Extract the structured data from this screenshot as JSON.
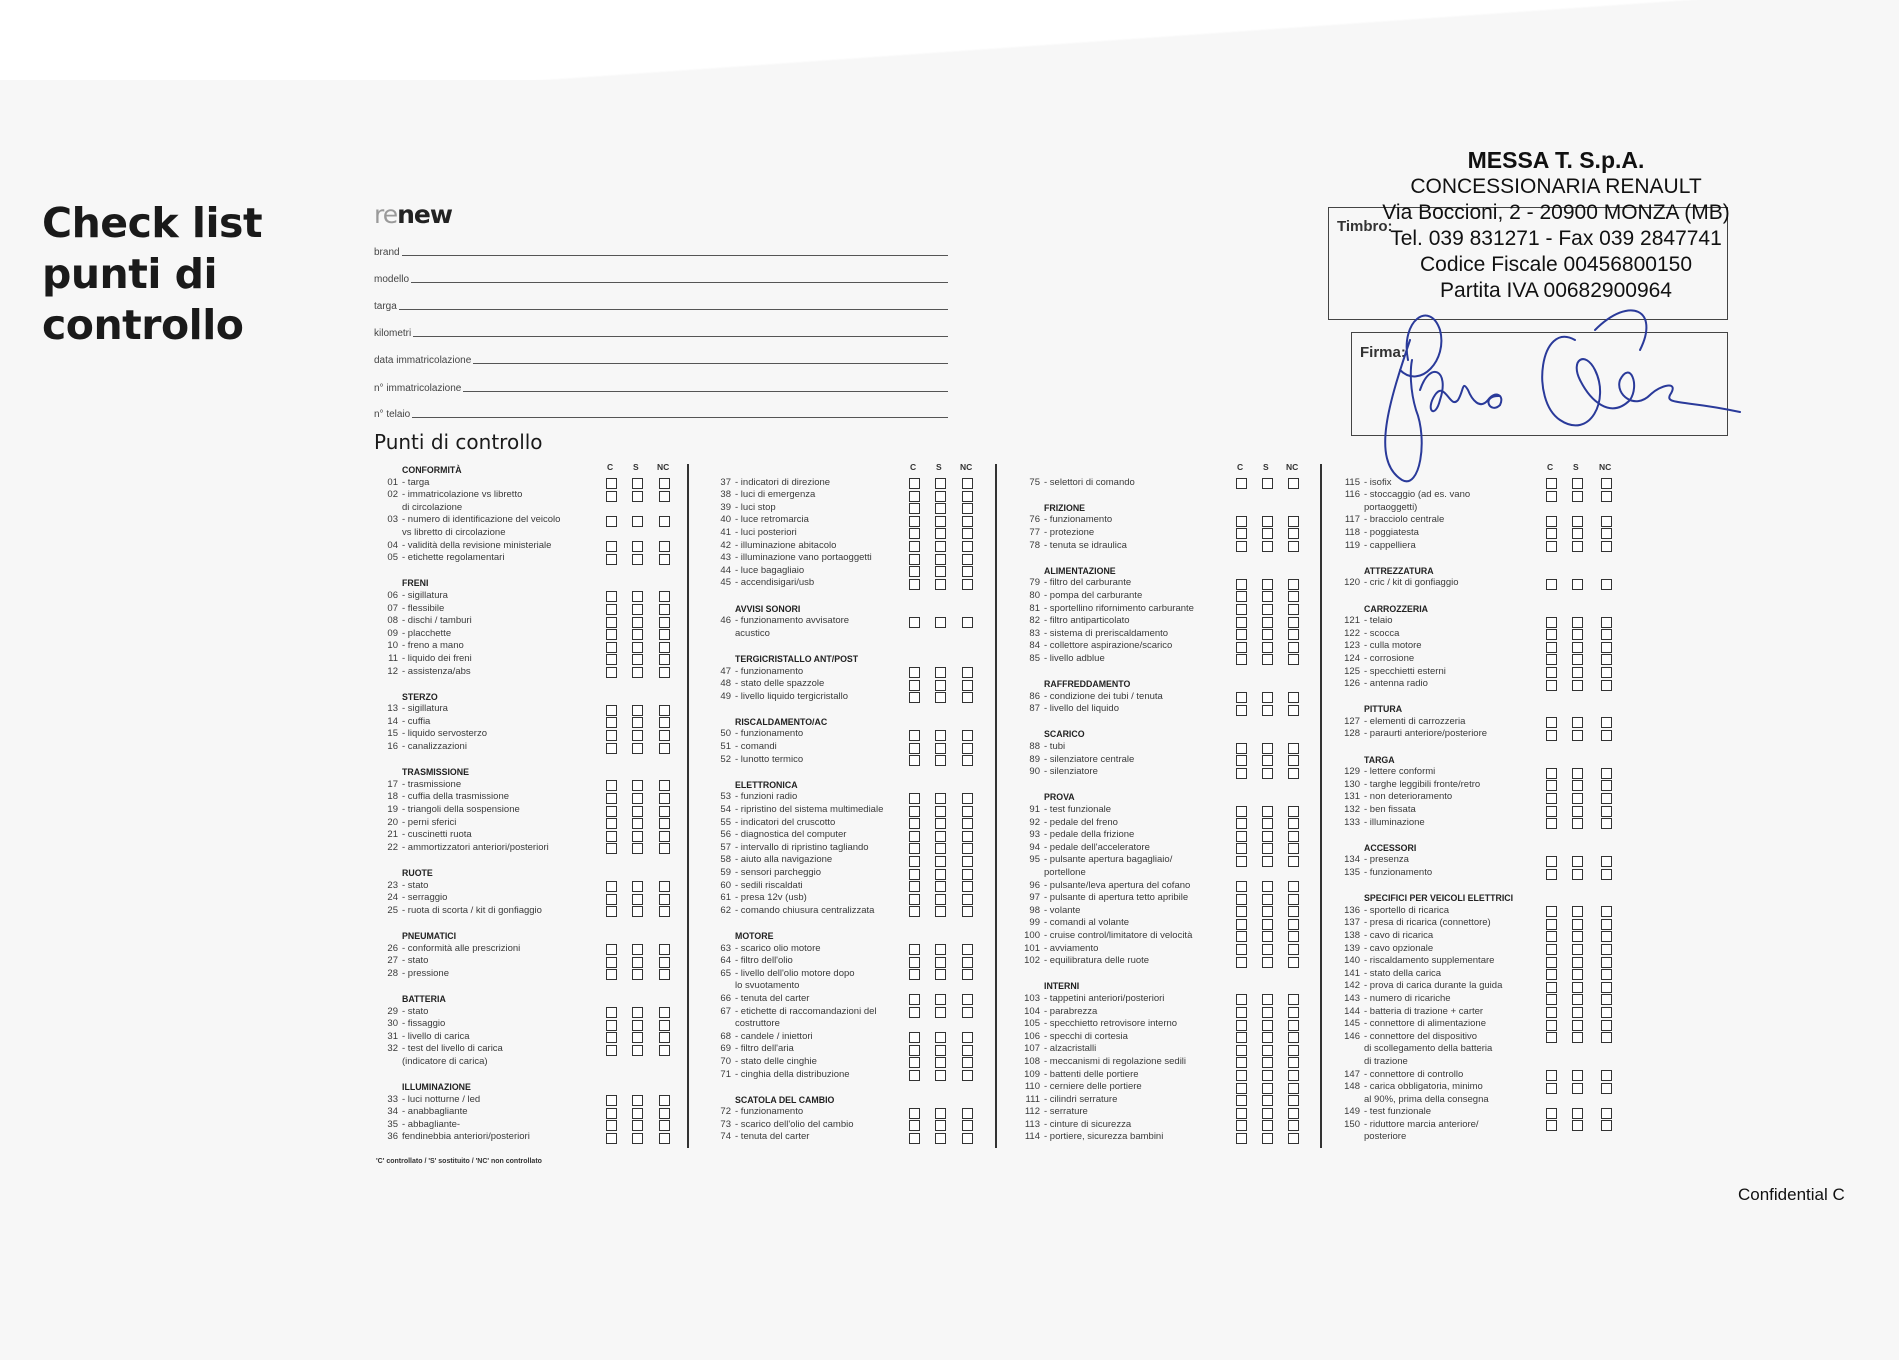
{
  "title": [
    "Check list",
    "punti di",
    "controllo"
  ],
  "logo": {
    "prefix": "re",
    "suffix": "new"
  },
  "fields": [
    "brand",
    "modello",
    "targa",
    "kilometri",
    "data immatricolazione",
    "n° immatricolazione",
    "n° telaio"
  ],
  "section_title": "Punti di controllo",
  "column_headers": [
    "C",
    "S",
    "NC"
  ],
  "columns": [
    [
      {
        "h": "CONFORMITÀ"
      },
      {
        "n": "01",
        "t": "- targa"
      },
      {
        "n": "02",
        "t": "- immatricolazione vs libretto",
        "w": [
          "di circolazione"
        ]
      },
      {
        "n": "03",
        "t": "- numero di identificazione del veicolo",
        "w": [
          "vs libretto di circolazione"
        ]
      },
      {
        "n": "04",
        "t": "- validità della revisione ministeriale"
      },
      {
        "n": "05",
        "t": "- etichette regolamentari"
      },
      {
        "h": "FRENI"
      },
      {
        "n": "06",
        "t": "- sigillatura"
      },
      {
        "n": "07",
        "t": "- flessibile"
      },
      {
        "n": "08",
        "t": "- dischi / tamburi"
      },
      {
        "n": "09",
        "t": "- placchette"
      },
      {
        "n": "10",
        "t": "- freno a mano"
      },
      {
        "n": "11",
        "t": "- liquido dei freni"
      },
      {
        "n": "12",
        "t": "- assistenza/abs"
      },
      {
        "h": "STERZO"
      },
      {
        "n": "13",
        "t": "- sigillatura"
      },
      {
        "n": "14",
        "t": "- cuffia"
      },
      {
        "n": "15",
        "t": "- liquido servosterzo"
      },
      {
        "n": "16",
        "t": "- canalizzazioni"
      },
      {
        "h": "TRASMISSIONE"
      },
      {
        "n": "17",
        "t": "- trasmissione"
      },
      {
        "n": "18",
        "t": "- cuffia della trasmissione"
      },
      {
        "n": "19",
        "t": "- triangoli della sospensione"
      },
      {
        "n": "20",
        "t": "- perni sferici"
      },
      {
        "n": "21",
        "t": "- cuscinetti ruota"
      },
      {
        "n": "22",
        "t": "- ammortizzatori anteriori/posteriori"
      },
      {
        "h": "RUOTE"
      },
      {
        "n": "23",
        "t": "- stato"
      },
      {
        "n": "24",
        "t": "- serraggio"
      },
      {
        "n": "25",
        "t": "- ruota di scorta / kit di gonfiaggio"
      },
      {
        "h": "PNEUMATICI"
      },
      {
        "n": "26",
        "t": "- conformità alle prescrizioni"
      },
      {
        "n": "27",
        "t": "- stato"
      },
      {
        "n": "28",
        "t": "- pressione"
      },
      {
        "h": "BATTERIA"
      },
      {
        "n": "29",
        "t": "- stato"
      },
      {
        "n": "30",
        "t": "- fissaggio"
      },
      {
        "n": "31",
        "t": "- livello di carica"
      },
      {
        "n": "32",
        "t": "- test del livello di carica",
        "w": [
          "(indicatore di carica)"
        ]
      },
      {
        "h": "ILLUMINAZIONE"
      },
      {
        "n": "33",
        "t": "- luci notturne / led"
      },
      {
        "n": "34",
        "t": "- anabbagliante"
      },
      {
        "n": "35",
        "t": "- abbagliante-"
      },
      {
        "n": "36",
        "t": "fendinebbia anteriori/posteriori"
      }
    ],
    [
      {
        "n": "37",
        "t": "- indicatori di direzione"
      },
      {
        "n": "38",
        "t": "- luci di emergenza"
      },
      {
        "n": "39",
        "t": "- luci stop"
      },
      {
        "n": "40",
        "t": "- luce retromarcia"
      },
      {
        "n": "41",
        "t": "- luci posteriori"
      },
      {
        "n": "42",
        "t": "- illuminazione abitacolo"
      },
      {
        "n": "43",
        "t": "- illuminazione vano portaoggetti"
      },
      {
        "n": "44",
        "t": "- luce bagagliaio"
      },
      {
        "n": "45",
        "t": "- accendisigari/usb"
      },
      {
        "h": "AVVISI SONORI"
      },
      {
        "n": "46",
        "t": "- funzionamento avvisatore",
        "w": [
          "acustico"
        ]
      },
      {
        "h": "TERGICRISTALLO ANT/POST"
      },
      {
        "n": "47",
        "t": "- funzionamento"
      },
      {
        "n": "48",
        "t": "- stato delle spazzole"
      },
      {
        "n": "49",
        "t": "- livello liquido tergicristallo"
      },
      {
        "h": "RISCALDAMENTO/AC"
      },
      {
        "n": "50",
        "t": "- funzionamento"
      },
      {
        "n": "51",
        "t": "- comandi"
      },
      {
        "n": "52",
        "t": "- lunotto termico"
      },
      {
        "h": "ELETTRONICA"
      },
      {
        "n": "53",
        "t": "- funzioni radio"
      },
      {
        "n": "54",
        "t": "- ripristino del sistema multimediale"
      },
      {
        "n": "55",
        "t": "- indicatori del cruscotto"
      },
      {
        "n": "56",
        "t": "- diagnostica del computer"
      },
      {
        "n": "57",
        "t": "- intervallo di ripristino tagliando"
      },
      {
        "n": "58",
        "t": "- aiuto alla navigazione"
      },
      {
        "n": "59",
        "t": "- sensori parcheggio"
      },
      {
        "n": "60",
        "t": "- sedili riscaldati"
      },
      {
        "n": "61",
        "t": "- presa 12v (usb)"
      },
      {
        "n": "62",
        "t": "- comando chiusura centralizzata"
      },
      {
        "h": "MOTORE"
      },
      {
        "n": "63",
        "t": "- scarico olio motore"
      },
      {
        "n": "64",
        "t": "- filtro dell'olio"
      },
      {
        "n": "65",
        "t": "- livello dell'olio motore dopo",
        "w": [
          "lo svuotamento"
        ]
      },
      {
        "n": "66",
        "t": "- tenuta del carter"
      },
      {
        "n": "67",
        "t": "- etichette di raccomandazioni del",
        "w": [
          "costruttore"
        ]
      },
      {
        "n": "68",
        "t": "- candele / iniettori"
      },
      {
        "n": "69",
        "t": "- filtro dell'aria"
      },
      {
        "n": "70",
        "t": "- stato delle cinghie"
      },
      {
        "n": "71",
        "t": "- cinghia della distribuzione"
      },
      {
        "h": "SCATOLA DEL CAMBIO"
      },
      {
        "n": "72",
        "t": "- funzionamento"
      },
      {
        "n": "73",
        "t": "- scarico dell'olio del cambio"
      },
      {
        "n": "74",
        "t": "- tenuta del carter"
      }
    ],
    [
      {
        "n": "75",
        "t": "- selettori di comando"
      },
      {
        "h": "FRIZIONE"
      },
      {
        "n": "76",
        "t": "- funzionamento"
      },
      {
        "n": "77",
        "t": "- protezione"
      },
      {
        "n": "78",
        "t": "- tenuta se idraulica"
      },
      {
        "h": "ALIMENTAZIONE"
      },
      {
        "n": "79",
        "t": "- filtro del carburante"
      },
      {
        "n": "80",
        "t": "- pompa del carburante"
      },
      {
        "n": "81",
        "t": "- sportellino rifornimento carburante"
      },
      {
        "n": "82",
        "t": "- filtro antiparticolato"
      },
      {
        "n": "83",
        "t": "- sistema di preriscaldamento"
      },
      {
        "n": "84",
        "t": "- collettore aspirazione/scarico"
      },
      {
        "n": "85",
        "t": "- livello adblue"
      },
      {
        "h": "RAFFREDDAMENTO"
      },
      {
        "n": "86",
        "t": "- condizione dei tubi / tenuta"
      },
      {
        "n": "87",
        "t": "- livello del liquido"
      },
      {
        "h": "SCARICO"
      },
      {
        "n": "88",
        "t": "- tubi"
      },
      {
        "n": "89",
        "t": "- silenziatore centrale"
      },
      {
        "n": "90",
        "t": "- silenziatore"
      },
      {
        "h": "PROVA"
      },
      {
        "n": "91",
        "t": "- test funzionale"
      },
      {
        "n": "92",
        "t": "- pedale del freno"
      },
      {
        "n": "93",
        "t": "- pedale della frizione"
      },
      {
        "n": "94",
        "t": "- pedale dell'acceleratore"
      },
      {
        "n": "95",
        "t": "- pulsante apertura bagagliaio/",
        "w": [
          "portellone"
        ]
      },
      {
        "n": "96",
        "t": "- pulsante/leva apertura del cofano"
      },
      {
        "n": "97",
        "t": "- pulsante di apertura tetto apribile"
      },
      {
        "n": "98",
        "t": "- volante"
      },
      {
        "n": "99",
        "t": "- comandi al volante"
      },
      {
        "n": "100",
        "t": "- cruise control/limitatore di velocità"
      },
      {
        "n": "101",
        "t": "- avviamento"
      },
      {
        "n": "102",
        "t": "- equilibratura delle ruote"
      },
      {
        "h": "INTERNI"
      },
      {
        "n": "103",
        "t": "- tappetini anteriori/posteriori"
      },
      {
        "n": "104",
        "t": "- parabrezza"
      },
      {
        "n": "105",
        "t": "- specchietto retrovisore interno"
      },
      {
        "n": "106",
        "t": "- specchi di cortesia"
      },
      {
        "n": "107",
        "t": "- alzacristalli"
      },
      {
        "n": "108",
        "t": "- meccanismi di regolazione sedili"
      },
      {
        "n": "109",
        "t": "- battenti delle portiere"
      },
      {
        "n": "110",
        "t": "- cerniere delle portiere"
      },
      {
        "n": "111",
        "t": "- cilindri serrature"
      },
      {
        "n": "112",
        "t": "- serrature"
      },
      {
        "n": "113",
        "t": "- cinture di sicurezza"
      },
      {
        "n": "114",
        "t": "- portiere, sicurezza bambini"
      }
    ],
    [
      {
        "n": "115",
        "t": "- isofix"
      },
      {
        "n": "116",
        "t": "- stoccaggio (ad es. vano",
        "w": [
          "portaoggetti)"
        ]
      },
      {
        "n": "117",
        "t": "- bracciolo centrale"
      },
      {
        "n": "118",
        "t": "- poggiatesta"
      },
      {
        "n": "119",
        "t": "- cappelliera"
      },
      {
        "h": "ATTREZZATURA"
      },
      {
        "n": "120",
        "t": "- cric / kit di gonfiaggio"
      },
      {
        "h": "CARROZZERIA"
      },
      {
        "n": "121",
        "t": "- telaio"
      },
      {
        "n": "122",
        "t": "- scocca"
      },
      {
        "n": "123",
        "t": "- culla motore"
      },
      {
        "n": "124",
        "t": "- corrosione"
      },
      {
        "n": "125",
        "t": "- specchietti esterni"
      },
      {
        "n": "126",
        "t": "- antenna radio"
      },
      {
        "h": "PITTURA"
      },
      {
        "n": "127",
        "t": "- elementi di carrozzeria"
      },
      {
        "n": "128",
        "t": "- paraurti anteriore/posteriore"
      },
      {
        "h": "TARGA"
      },
      {
        "n": "129",
        "t": "- lettere conformi"
      },
      {
        "n": "130",
        "t": "- targhe leggibili fronte/retro"
      },
      {
        "n": "131",
        "t": "- non deterioramento"
      },
      {
        "n": "132",
        "t": "- ben fissata"
      },
      {
        "n": "133",
        "t": "- illuminazione"
      },
      {
        "h": "ACCESSORI"
      },
      {
        "n": "134",
        "t": "- presenza"
      },
      {
        "n": "135",
        "t": "- funzionamento"
      },
      {
        "h": "SPECIFICI PER VEICOLI ELETTRICI"
      },
      {
        "n": "136",
        "t": "- sportello di ricarica"
      },
      {
        "n": "137",
        "t": "- presa di ricarica (connettore)"
      },
      {
        "n": "138",
        "t": "- cavo di ricarica"
      },
      {
        "n": "139",
        "t": "- cavo opzionale"
      },
      {
        "n": "140",
        "t": "- riscaldamento supplementare"
      },
      {
        "n": "141",
        "t": "- stato della carica"
      },
      {
        "n": "142",
        "t": "- prova di carica durante la guida"
      },
      {
        "n": "143",
        "t": "- numero di ricariche"
      },
      {
        "n": "144",
        "t": "- batteria di trazione + carter"
      },
      {
        "n": "145",
        "t": "- connettore di alimentazione"
      },
      {
        "n": "146",
        "t": "- connettore del dispositivo",
        "w": [
          "di scollegamento della batteria",
          "di trazione"
        ]
      },
      {
        "n": "147",
        "t": "- connettore di controllo"
      },
      {
        "n": "148",
        "t": "- carica obbligatoria, minimo",
        "w": [
          "al 90%, prima della consegna"
        ]
      },
      {
        "n": "149",
        "t": "- test funzionale"
      },
      {
        "n": "150",
        "t": "- riduttore marcia anteriore/",
        "w": [
          "posteriore"
        ]
      }
    ]
  ],
  "footnote": "'C' controllato / 'S' sostituito / 'NC' non controllato",
  "stamp": {
    "company": "MESSA T. S.p.A.",
    "lines": [
      "CONCESSIONARIA RENAULT",
      "Via Boccioni, 2 - 20900 MONZA (MB)",
      "Tel. 039 831271 - Fax 039 2847741",
      "Codice Fiscale 00456800150",
      "Partita IVA 00682900964"
    ],
    "timbro_label": "Timbro:",
    "firma_label": "Firma:"
  },
  "signature_color": "#2a3a9a",
  "confidential": "Confidential C"
}
